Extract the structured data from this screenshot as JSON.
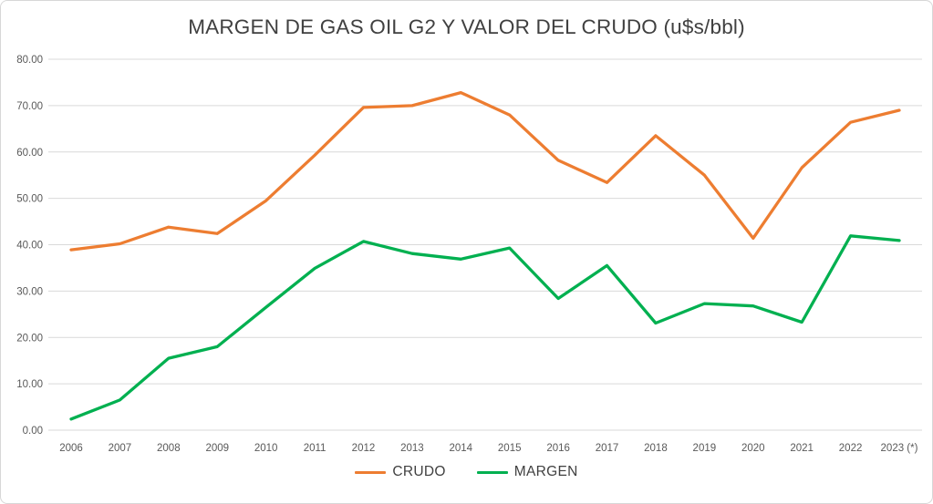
{
  "chart_data": {
    "type": "line",
    "title": "MARGEN DE GAS OIL G2 Y VALOR DEL CRUDO (u$s/bbl)",
    "categories": [
      "2006",
      "2007",
      "2008",
      "2009",
      "2010",
      "2011",
      "2012",
      "2013",
      "2014",
      "2015",
      "2016",
      "2017",
      "2018",
      "2019",
      "2020",
      "2021",
      "2022",
      "2023 (*)"
    ],
    "series": [
      {
        "name": "CRUDO",
        "color": "#ED7D31",
        "values": [
          38.9,
          40.2,
          43.8,
          42.4,
          49.5,
          59.3,
          69.6,
          70.0,
          72.8,
          68.0,
          58.2,
          53.4,
          63.5,
          55.0,
          41.4,
          56.6,
          66.4,
          69.0
        ]
      },
      {
        "name": "MARGEN",
        "color": "#00B050",
        "values": [
          2.4,
          6.5,
          15.5,
          18.0,
          26.5,
          34.9,
          40.7,
          38.1,
          36.9,
          39.3,
          28.4,
          35.5,
          23.1,
          27.3,
          26.8,
          23.3,
          41.9,
          40.9
        ]
      }
    ],
    "xlabel": "",
    "ylabel": "",
    "ylim": [
      0,
      80
    ],
    "y_ticks": [
      "0.00",
      "10.00",
      "20.00",
      "30.00",
      "40.00",
      "50.00",
      "60.00",
      "70.00",
      "80.00"
    ],
    "grid": true,
    "legend_position": "bottom"
  },
  "colors": {
    "grid": "#D9D9D9",
    "axis_text": "#595959",
    "title_text": "#404040",
    "background": "#FFFFFF",
    "border": "#D7D7D7"
  }
}
